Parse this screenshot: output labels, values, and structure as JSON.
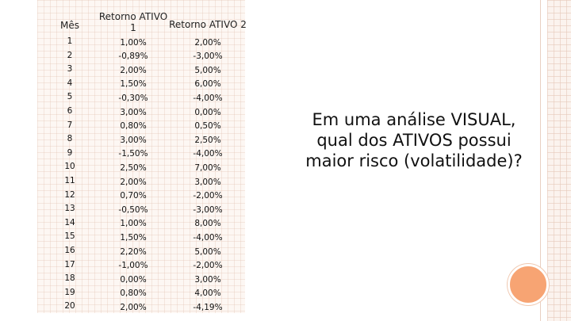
{
  "table": {
    "headers": {
      "mes": "Mês",
      "ativo1": "Retorno ATIVO 1",
      "ativo2": "Retorno ATIVO 2"
    },
    "rows": [
      {
        "mes": "1",
        "a1": "1,00%",
        "a2": "2,00%"
      },
      {
        "mes": "2",
        "a1": "-0,89%",
        "a2": "-3,00%"
      },
      {
        "mes": "3",
        "a1": "2,00%",
        "a2": "5,00%"
      },
      {
        "mes": "4",
        "a1": "1,50%",
        "a2": "6,00%"
      },
      {
        "mes": "5",
        "a1": "-0,30%",
        "a2": "-4,00%"
      },
      {
        "mes": "6",
        "a1": "3,00%",
        "a2": "0,00%"
      },
      {
        "mes": "7",
        "a1": "0,80%",
        "a2": "0,50%"
      },
      {
        "mes": "8",
        "a1": "3,00%",
        "a2": "2,50%"
      },
      {
        "mes": "9",
        "a1": "-1,50%",
        "a2": "-4,00%"
      },
      {
        "mes": "10",
        "a1": "2,50%",
        "a2": "7,00%"
      },
      {
        "mes": "11",
        "a1": "2,00%",
        "a2": "3,00%"
      },
      {
        "mes": "12",
        "a1": "0,70%",
        "a2": "-2,00%"
      },
      {
        "mes": "13",
        "a1": "-0,50%",
        "a2": "-3,00%"
      },
      {
        "mes": "14",
        "a1": "1,00%",
        "a2": "8,00%"
      },
      {
        "mes": "15",
        "a1": "1,50%",
        "a2": "-4,00%"
      },
      {
        "mes": "16",
        "a1": "2,20%",
        "a2": "5,00%"
      },
      {
        "mes": "17",
        "a1": "-1,00%",
        "a2": "-2,00%"
      },
      {
        "mes": "18",
        "a1": "0,00%",
        "a2": "3,00%"
      },
      {
        "mes": "19",
        "a1": "0,80%",
        "a2": "4,00%"
      },
      {
        "mes": "20",
        "a1": "2,00%",
        "a2": "-4,19%"
      }
    ]
  },
  "question": "Em uma análise VISUAL, qual dos ATIVOS possui maior risco (volatilidade)?",
  "colors": {
    "accent_circle": "#f7a473",
    "grid_bg": "#fdf7f3"
  }
}
